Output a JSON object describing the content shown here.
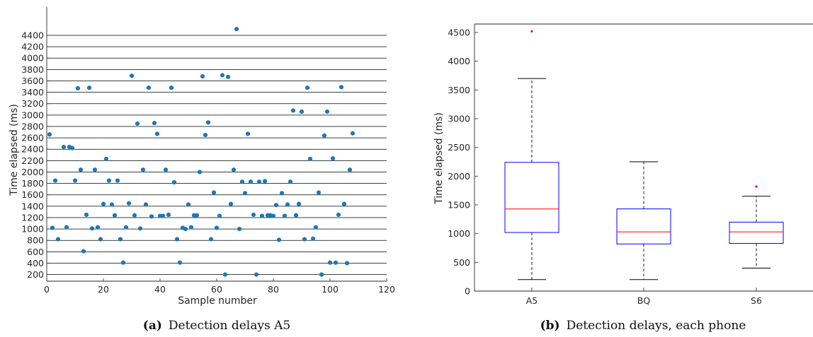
{
  "chart_data": [
    {
      "type": "scatter",
      "xlabel": "Sample number",
      "ylabel": "Time elapsed (ms)",
      "xlim": [
        0,
        120
      ],
      "ylim": [
        0,
        4500
      ],
      "xticks": [
        0,
        20,
        40,
        60,
        80,
        100,
        120
      ],
      "yticks": [
        200,
        400,
        600,
        800,
        1000,
        1200,
        1400,
        1600,
        1800,
        2000,
        2200,
        2400,
        2600,
        2800,
        3000,
        3200,
        3400,
        3600,
        3800,
        4000,
        4200,
        4400
      ],
      "grid": "horizontal",
      "color": "#1f77b4",
      "caption_letter": "(a)",
      "caption_text": "Detection delays A5",
      "x": [
        1,
        2,
        3,
        4,
        6,
        7,
        8,
        9,
        10,
        11,
        12,
        13,
        14,
        15,
        16,
        17,
        18,
        19,
        20,
        21,
        22,
        23,
        24,
        25,
        26,
        27,
        28,
        29,
        30,
        31,
        32,
        33,
        34,
        35,
        36,
        37,
        38,
        39,
        40,
        41,
        42,
        43,
        44,
        45,
        46,
        47,
        48,
        49,
        50,
        51,
        52,
        53,
        54,
        55,
        56,
        57,
        58,
        59,
        60,
        61,
        62,
        63,
        64,
        65,
        66,
        67,
        68,
        69,
        70,
        71,
        72,
        73,
        74,
        75,
        76,
        77,
        78,
        79,
        80,
        81,
        82,
        83,
        84,
        85,
        86,
        87,
        88,
        89,
        90,
        91,
        92,
        93,
        94,
        95,
        96,
        97,
        98,
        99,
        100,
        101,
        102,
        103,
        104,
        105,
        106,
        107,
        108
      ],
      "y": [
        2660,
        1020,
        1850,
        820,
        2440,
        1030,
        2440,
        2420,
        1850,
        3470,
        2040,
        610,
        1250,
        3480,
        1010,
        2040,
        1030,
        820,
        1440,
        2230,
        1850,
        1430,
        1240,
        1850,
        820,
        410,
        1030,
        1450,
        3690,
        1240,
        2850,
        1010,
        2040,
        1430,
        3480,
        1220,
        2860,
        2670,
        1230,
        1230,
        2040,
        1250,
        3480,
        1820,
        820,
        410,
        1020,
        1000,
        1430,
        1030,
        1240,
        1240,
        2000,
        3680,
        2650,
        2870,
        820,
        1640,
        1020,
        1230,
        3700,
        200,
        3670,
        1440,
        2040,
        4510,
        1000,
        1830,
        1630,
        2670,
        1830,
        1250,
        200,
        1830,
        1230,
        1840,
        1240,
        1240,
        1230,
        1420,
        810,
        1630,
        1230,
        1430,
        1830,
        3080,
        1240,
        1440,
        3060,
        820,
        3480,
        2230,
        830,
        1030,
        1640,
        200,
        2640,
        3060,
        410,
        2240,
        410,
        1250,
        3490,
        1440,
        400,
        2040,
        2680
      ]
    },
    {
      "type": "boxplot",
      "ylabel": "Time elapsed (ms)",
      "ylim": [
        0,
        4600
      ],
      "yticks": [
        0,
        500,
        1000,
        1500,
        2000,
        2500,
        3000,
        3500,
        4000,
        4500
      ],
      "categories": [
        "A5",
        "BQ",
        "S6"
      ],
      "boxes": [
        {
          "q1": 1020,
          "median": 1430,
          "q3": 2240,
          "whisker_low": 200,
          "whisker_high": 3700,
          "outliers": [
            4520
          ]
        },
        {
          "q1": 820,
          "median": 1030,
          "q3": 1430,
          "whisker_low": 200,
          "whisker_high": 2250,
          "outliers": []
        },
        {
          "q1": 830,
          "median": 1030,
          "q3": 1200,
          "whisker_low": 400,
          "whisker_high": 1650,
          "outliers": [
            1820
          ]
        }
      ],
      "box_color": "#0000ff",
      "median_color": "#ff0000",
      "outlier_color": "#ff0000",
      "caption_letter": "(b)",
      "caption_text": "Detection delays, each phone"
    }
  ]
}
